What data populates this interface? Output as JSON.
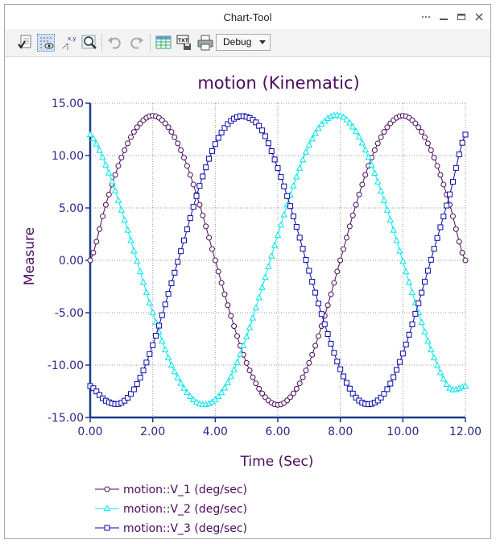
{
  "window": {
    "title": "Chart-Tool"
  },
  "toolbar": {
    "buttons": [
      {
        "icon": "checklist-icon"
      },
      {
        "icon": "show-grid-icon"
      },
      {
        "icon": "coordinate-readout-icon",
        "label": "x,y"
      },
      {
        "icon": "zoom-icon"
      },
      {
        "icon": "undo-icon"
      },
      {
        "icon": "redo-icon"
      },
      {
        "icon": "table-icon"
      },
      {
        "icon": "text-export-icon",
        "label": "TXT"
      },
      {
        "icon": "print-icon"
      }
    ],
    "mode_select": {
      "value": "Debug"
    }
  },
  "colors": {
    "title": "#4b0b5e",
    "axis": "#1a3a8a",
    "tick_text": "#2a2a8a",
    "v1": "#4b0b5e",
    "v2": "#00e5ee",
    "v3": "#0a0aa8"
  },
  "chart_data": {
    "type": "line",
    "title": "motion (Kinematic)",
    "xlabel": "Time (Sec)",
    "ylabel": "Measure",
    "xlim": [
      0,
      12
    ],
    "ylim": [
      -15,
      15
    ],
    "x_ticks": [
      "0.00",
      "2.00",
      "4.00",
      "6.00",
      "8.00",
      "10.00",
      "12.00"
    ],
    "y_ticks": [
      "15.00",
      "10.00",
      "5.00",
      "0.00",
      "-5.00",
      "-10.00",
      "-15.00"
    ],
    "grid": true,
    "legend_position": "bottom-left",
    "x": [
      0.0,
      0.5,
      1.0,
      1.5,
      2.0,
      2.5,
      3.0,
      3.5,
      4.0,
      4.5,
      5.0,
      5.5,
      6.0,
      6.5,
      7.0,
      7.5,
      8.0,
      8.5,
      9.0,
      9.5,
      10.0,
      10.5,
      11.0,
      11.5,
      12.0
    ],
    "series": [
      {
        "name": "motion::V_1 (deg/sec)",
        "marker": "circle",
        "values": [
          0.0,
          5.3,
          9.8,
          12.7,
          13.8,
          12.7,
          9.8,
          5.3,
          0.0,
          -5.3,
          -9.8,
          -12.7,
          -13.8,
          -12.7,
          -9.8,
          -5.3,
          0.0,
          5.3,
          9.8,
          12.7,
          13.8,
          12.7,
          9.8,
          5.3,
          0.0
        ]
      },
      {
        "name": "motion::V_2 (deg/sec)",
        "marker": "triangle",
        "values": [
          12.0,
          9.1,
          4.8,
          -0.1,
          -5.0,
          -9.3,
          -12.2,
          -13.7,
          -13.3,
          -11.1,
          -7.3,
          -2.6,
          2.4,
          7.1,
          11.0,
          13.3,
          13.8,
          12.3,
          9.1,
          4.8,
          -0.1,
          -5.0,
          -9.3,
          -12.2,
          -12.0
        ]
      },
      {
        "name": "motion::V_3 (deg/sec)",
        "marker": "square",
        "values": [
          -12.0,
          -13.4,
          -13.6,
          -11.8,
          -8.1,
          -3.2,
          1.9,
          7.1,
          11.1,
          13.3,
          13.7,
          12.4,
          8.8,
          4.2,
          -1.0,
          -6.1,
          -10.4,
          -13.1,
          -13.7,
          -12.3,
          -8.9,
          -4.1,
          1.1,
          6.3,
          12.0
        ]
      }
    ]
  }
}
